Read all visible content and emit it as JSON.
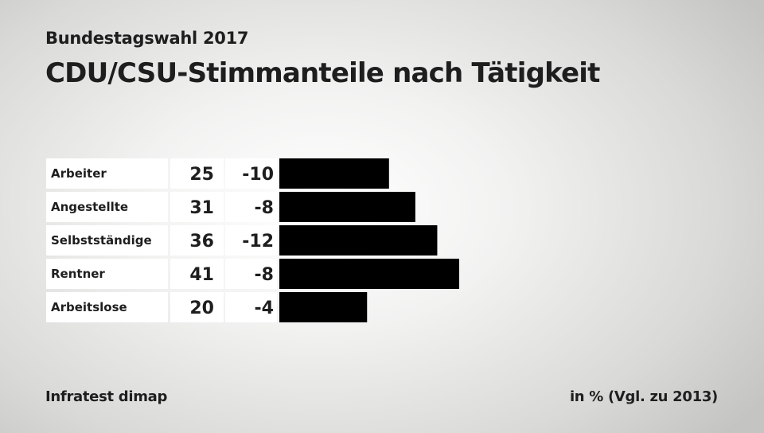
{
  "header": {
    "subtitle": "Bundestagswahl 2017",
    "title": "CDU/CSU-Stimmanteile nach Tätigkeit"
  },
  "footer": {
    "source": "Infratest dimap",
    "unit": "in % (Vgl. zu 2013)"
  },
  "colors": {
    "bar": "#000000",
    "cell": "#ffffff",
    "text": "#1e1e1e"
  },
  "chart_data": {
    "type": "bar",
    "orientation": "horizontal",
    "categories": [
      "Arbeiter",
      "Angestellte",
      "Selbstständige",
      "Rentner",
      "Arbeitslose"
    ],
    "values": [
      25,
      31,
      36,
      41,
      20
    ],
    "changes": [
      "-10",
      "-8",
      "-12",
      "-8",
      "-4"
    ],
    "xlim": [
      0,
      41
    ],
    "grid": false,
    "legend": "none"
  }
}
